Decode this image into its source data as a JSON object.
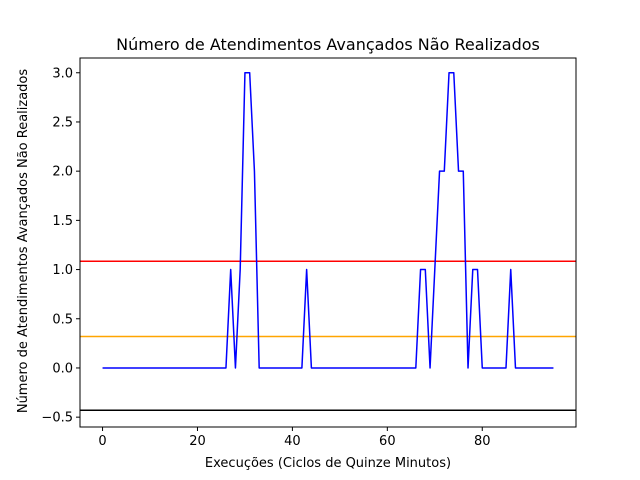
{
  "chart_data": {
    "type": "line",
    "title": "Número de Atendimentos Avançados Não Realizados",
    "xlabel": "Execuções (Ciclos de Quinze Minutos)",
    "ylabel": "Número de Atendimentos Avançados Não Realizados",
    "xlim": [
      -4.75,
      99.75
    ],
    "ylim": [
      -0.6,
      3.15
    ],
    "xticks": [
      0,
      20,
      40,
      60,
      80
    ],
    "yticks": [
      -0.5,
      0.0,
      0.5,
      1.0,
      1.5,
      2.0,
      2.5,
      3.0
    ],
    "grid": false,
    "series": [
      {
        "color": "#0000ff",
        "x": [
          0,
          1,
          2,
          3,
          4,
          5,
          6,
          7,
          8,
          9,
          10,
          11,
          12,
          13,
          14,
          15,
          16,
          17,
          18,
          19,
          20,
          21,
          22,
          23,
          24,
          25,
          26,
          27,
          28,
          29,
          30,
          31,
          32,
          33,
          34,
          35,
          36,
          37,
          38,
          39,
          40,
          41,
          42,
          43,
          44,
          45,
          46,
          47,
          48,
          49,
          50,
          51,
          52,
          53,
          54,
          55,
          56,
          57,
          58,
          59,
          60,
          61,
          62,
          63,
          64,
          65,
          66,
          67,
          68,
          69,
          70,
          71,
          72,
          73,
          74,
          75,
          76,
          77,
          78,
          79,
          80,
          81,
          82,
          83,
          84,
          85,
          86,
          87,
          88,
          89,
          90,
          91,
          92,
          93,
          94,
          95
        ],
        "y": [
          0,
          0,
          0,
          0,
          0,
          0,
          0,
          0,
          0,
          0,
          0,
          0,
          0,
          0,
          0,
          0,
          0,
          0,
          0,
          0,
          0,
          0,
          0,
          0,
          0,
          0,
          0,
          1,
          0,
          1,
          3,
          3,
          2,
          0,
          0,
          0,
          0,
          0,
          0,
          0,
          0,
          0,
          0,
          1,
          0,
          0,
          0,
          0,
          0,
          0,
          0,
          0,
          0,
          0,
          0,
          0,
          0,
          0,
          0,
          0,
          0,
          0,
          0,
          0,
          0,
          0,
          0,
          1,
          1,
          0,
          1,
          2,
          2,
          3,
          3,
          2,
          2,
          0,
          1,
          1,
          0,
          0,
          0,
          0,
          0,
          0,
          1,
          0,
          0,
          0,
          0,
          0,
          0,
          0,
          0,
          0
        ]
      }
    ],
    "hlines": [
      {
        "y": 1.085,
        "color": "#ff0000"
      },
      {
        "y": 0.32,
        "color": "#ffa500"
      },
      {
        "y": -0.43,
        "color": "#000000"
      }
    ]
  }
}
